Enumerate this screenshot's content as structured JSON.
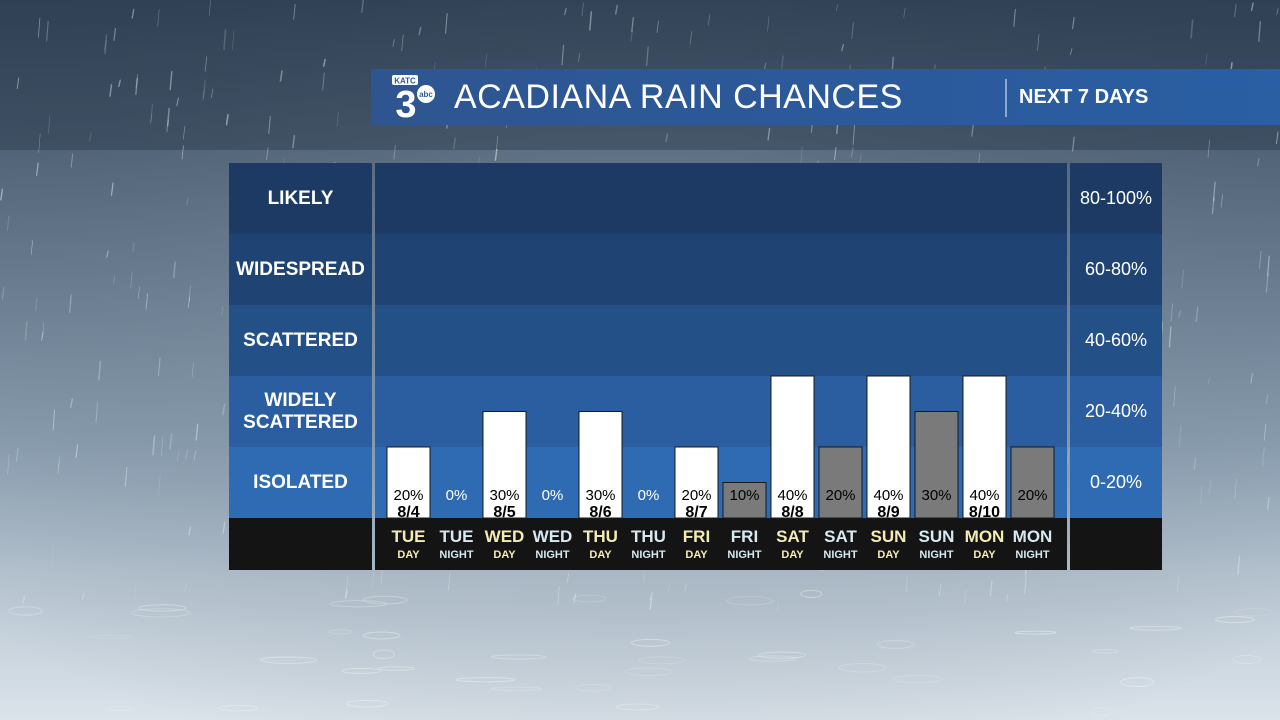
{
  "header": {
    "logo_letters": "KATC",
    "logo_number": "3",
    "logo_network": "abc",
    "title": "ACADIANA RAIN CHANCES",
    "subtitle": "NEXT 7 DAYS"
  },
  "colors": {
    "band_likely": "#1c3a63",
    "band_widespread": "#1f4474",
    "band_scattered": "#245088",
    "band_widely": "#2a5ea0",
    "band_isolated": "#2f6bb3",
    "day_bar": "#ffffff",
    "night_bar": "#7a7a7a",
    "day_text": "#f5ebb4",
    "night_text": "#d7e9f2",
    "footer": "#141414"
  },
  "chart_data": {
    "type": "bar",
    "ylim": [
      0,
      100
    ],
    "bands": [
      {
        "label": "LIKELY",
        "range": "80-100%",
        "min": 80,
        "max": 100
      },
      {
        "label": "WIDESPREAD",
        "range": "60-80%",
        "min": 60,
        "max": 80
      },
      {
        "label": "SCATTERED",
        "range": "40-60%",
        "min": 40,
        "max": 60
      },
      {
        "label": "WIDELY SCATTERED",
        "range": "20-40%",
        "min": 20,
        "max": 40
      },
      {
        "label": "ISOLATED",
        "range": "0-20%",
        "min": 0,
        "max": 20
      }
    ],
    "periods": [
      {
        "day": "TUE",
        "part": "DAY",
        "date": "8/4",
        "value": 20,
        "label": "20%"
      },
      {
        "day": "TUE",
        "part": "NIGHT",
        "date": "",
        "value": 0,
        "label": "0%"
      },
      {
        "day": "WED",
        "part": "DAY",
        "date": "8/5",
        "value": 30,
        "label": "30%"
      },
      {
        "day": "WED",
        "part": "NIGHT",
        "date": "",
        "value": 0,
        "label": "0%"
      },
      {
        "day": "THU",
        "part": "DAY",
        "date": "8/6",
        "value": 30,
        "label": "30%"
      },
      {
        "day": "THU",
        "part": "NIGHT",
        "date": "",
        "value": 0,
        "label": "0%"
      },
      {
        "day": "FRI",
        "part": "DAY",
        "date": "8/7",
        "value": 20,
        "label": "20%"
      },
      {
        "day": "FRI",
        "part": "NIGHT",
        "date": "",
        "value": 10,
        "label": "10%"
      },
      {
        "day": "SAT",
        "part": "DAY",
        "date": "8/8",
        "value": 40,
        "label": "40%"
      },
      {
        "day": "SAT",
        "part": "NIGHT",
        "date": "",
        "value": 20,
        "label": "20%"
      },
      {
        "day": "SUN",
        "part": "DAY",
        "date": "8/9",
        "value": 40,
        "label": "40%"
      },
      {
        "day": "SUN",
        "part": "NIGHT",
        "date": "",
        "value": 30,
        "label": "30%"
      },
      {
        "day": "MON",
        "part": "DAY",
        "date": "8/10",
        "value": 40,
        "label": "40%"
      },
      {
        "day": "MON",
        "part": "NIGHT",
        "date": "",
        "value": 20,
        "label": "20%"
      }
    ]
  }
}
